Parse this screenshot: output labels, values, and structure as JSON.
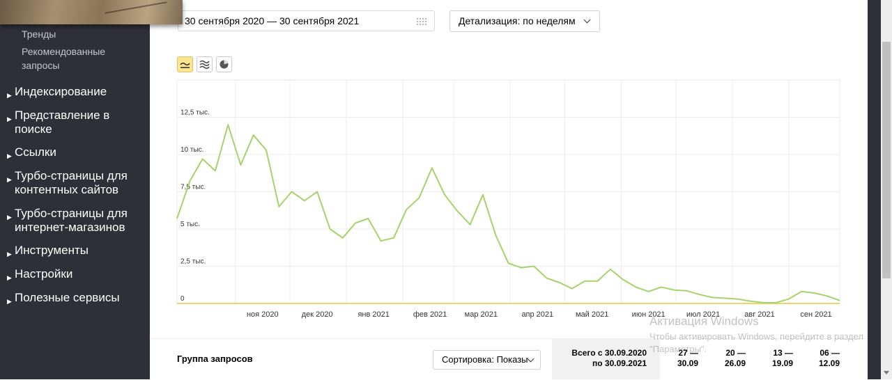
{
  "sidebar": {
    "sub_items": [
      "Тренды",
      "Рекомендованные запросы"
    ],
    "items": [
      {
        "label": "Индексирование"
      },
      {
        "label": "Представление в поиске"
      },
      {
        "label": "Ссылки"
      },
      {
        "label": "Турбо-страницы для контентных сайтов"
      },
      {
        "label": "Турбо-страницы для интернет-магазинов"
      },
      {
        "label": "Инструменты"
      },
      {
        "label": "Настройки"
      },
      {
        "label": "Полезные сервисы"
      }
    ]
  },
  "filters": {
    "date_range": "30 сентября 2020 — 30 сентября 2021",
    "detail_label": "Детализация: по неделям"
  },
  "chart_types": [
    "line-chart-icon",
    "stacked-area-icon",
    "pie-chart-icon"
  ],
  "chart_data": {
    "type": "line",
    "y_ticks": [
      "0",
      "2,5 тыс.",
      "5 тыс.",
      "7,5 тыс.",
      "10 тыс.",
      "12,5 тыс."
    ],
    "y_tick_values": [
      0,
      2500,
      5000,
      7500,
      10000,
      12500
    ],
    "ylim": [
      0,
      15000
    ],
    "x_ticks": [
      "ноя 2020",
      "дек 2020",
      "янв 2021",
      "фев 2021",
      "мар 2021",
      "апр 2021",
      "май 2021",
      "июн 2021",
      "июл 2021",
      "авг 2021",
      "сен 2021"
    ],
    "series": [
      {
        "color": "#a5d36b",
        "x": [
          "2020-09-30",
          "2020-10-07",
          "2020-10-14",
          "2020-10-21",
          "2020-10-28",
          "2020-11-04",
          "2020-11-11",
          "2020-11-18",
          "2020-11-25",
          "2020-12-02",
          "2020-12-09",
          "2020-12-16",
          "2020-12-23",
          "2020-12-30",
          "2021-01-06",
          "2021-01-13",
          "2021-01-20",
          "2021-01-27",
          "2021-02-03",
          "2021-02-10",
          "2021-02-17",
          "2021-02-24",
          "2021-03-03",
          "2021-03-10",
          "2021-03-17",
          "2021-03-24",
          "2021-03-31",
          "2021-04-07",
          "2021-04-14",
          "2021-04-21",
          "2021-04-28",
          "2021-05-05",
          "2021-05-12",
          "2021-05-19",
          "2021-05-26",
          "2021-06-02",
          "2021-06-09",
          "2021-06-16",
          "2021-06-23",
          "2021-06-30",
          "2021-07-07",
          "2021-07-14",
          "2021-07-21",
          "2021-07-28",
          "2021-08-04",
          "2021-08-11",
          "2021-08-18",
          "2021-08-25",
          "2021-09-01",
          "2021-09-08",
          "2021-09-15",
          "2021-09-22",
          "2021-09-29"
        ],
        "values": [
          5700,
          8200,
          9700,
          8900,
          12000,
          9300,
          11300,
          10300,
          6500,
          7500,
          6900,
          7500,
          5000,
          4400,
          5400,
          5700,
          4200,
          4400,
          6300,
          7100,
          9100,
          7300,
          6200,
          5300,
          7300,
          4600,
          2700,
          2400,
          2500,
          1700,
          1400,
          1000,
          1500,
          1500,
          2300,
          1600,
          1100,
          800,
          1100,
          900,
          850,
          600,
          400,
          350,
          300,
          150,
          50,
          50,
          300,
          800,
          700,
          500,
          200
        ]
      }
    ]
  },
  "watermark": {
    "title": "Активация Windows",
    "text": "Чтобы активировать Windows, перейдите в раздел \"Параметры\"."
  },
  "table": {
    "group_label": "Группа запросов",
    "sort_label": "Сортировка: Показы",
    "total_line1": "Всего с 30.09.2020",
    "total_line2": "по 30.09.2021",
    "periods": [
      {
        "l1": "27 —",
        "l2": "30.09"
      },
      {
        "l1": "20 —",
        "l2": "26.09"
      },
      {
        "l1": "13 —",
        "l2": "19.09"
      },
      {
        "l1": "06 —",
        "l2": "12.09"
      }
    ]
  }
}
